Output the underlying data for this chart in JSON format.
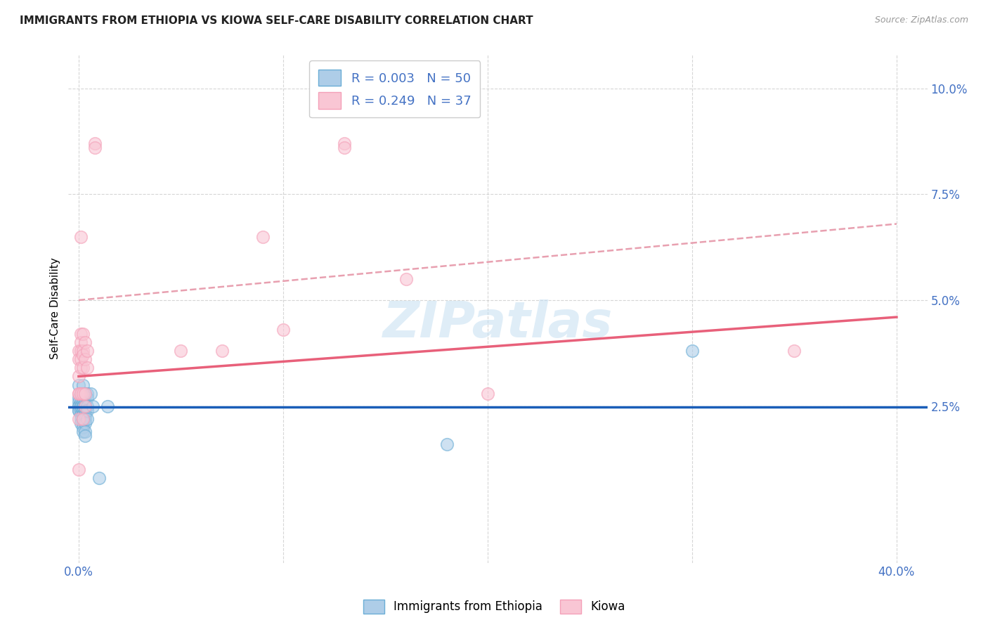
{
  "title": "IMMIGRANTS FROM ETHIOPIA VS KIOWA SELF-CARE DISABILITY CORRELATION CHART",
  "source": "Source: ZipAtlas.com",
  "ylabel": "Self-Care Disability",
  "xlim": [
    -0.005,
    0.415
  ],
  "ylim": [
    -0.012,
    0.108
  ],
  "legend_bottom": [
    "Immigrants from Ethiopia",
    "Kiowa"
  ],
  "blue_color": "#6baed6",
  "pink_color": "#f4a0b8",
  "blue_face": "#aecde8",
  "pink_face": "#f9c6d4",
  "line_blue_color": "#1a5eb8",
  "line_pink_color": "#e8607a",
  "line_dash_color": "#e8a0b0",
  "watermark": "ZIPatlas",
  "tick_color": "#4472c4",
  "blue_R": "0.003",
  "blue_N": "50",
  "pink_R": "0.249",
  "pink_N": "37",
  "blue_scatter": [
    [
      0.0,
      0.03
    ],
    [
      0.0,
      0.027
    ],
    [
      0.0,
      0.026
    ],
    [
      0.0,
      0.025
    ],
    [
      0.0,
      0.025
    ],
    [
      0.0,
      0.024
    ],
    [
      0.0,
      0.024
    ],
    [
      0.001,
      0.028
    ],
    [
      0.001,
      0.026
    ],
    [
      0.001,
      0.025
    ],
    [
      0.001,
      0.025
    ],
    [
      0.001,
      0.024
    ],
    [
      0.001,
      0.023
    ],
    [
      0.001,
      0.022
    ],
    [
      0.001,
      0.021
    ],
    [
      0.002,
      0.03
    ],
    [
      0.002,
      0.027
    ],
    [
      0.002,
      0.026
    ],
    [
      0.002,
      0.025
    ],
    [
      0.002,
      0.025
    ],
    [
      0.002,
      0.024
    ],
    [
      0.002,
      0.024
    ],
    [
      0.002,
      0.023
    ],
    [
      0.002,
      0.023
    ],
    [
      0.002,
      0.022
    ],
    [
      0.002,
      0.022
    ],
    [
      0.002,
      0.021
    ],
    [
      0.002,
      0.02
    ],
    [
      0.002,
      0.019
    ],
    [
      0.003,
      0.028
    ],
    [
      0.003,
      0.026
    ],
    [
      0.003,
      0.025
    ],
    [
      0.003,
      0.025
    ],
    [
      0.003,
      0.024
    ],
    [
      0.003,
      0.024
    ],
    [
      0.003,
      0.023
    ],
    [
      0.003,
      0.022
    ],
    [
      0.003,
      0.021
    ],
    [
      0.003,
      0.019
    ],
    [
      0.003,
      0.018
    ],
    [
      0.004,
      0.028
    ],
    [
      0.004,
      0.027
    ],
    [
      0.004,
      0.025
    ],
    [
      0.004,
      0.024
    ],
    [
      0.004,
      0.022
    ],
    [
      0.006,
      0.028
    ],
    [
      0.007,
      0.025
    ],
    [
      0.014,
      0.025
    ],
    [
      0.3,
      0.038
    ],
    [
      0.18,
      0.016
    ],
    [
      0.01,
      0.008
    ]
  ],
  "pink_scatter": [
    [
      0.0,
      0.038
    ],
    [
      0.0,
      0.036
    ],
    [
      0.0,
      0.032
    ],
    [
      0.0,
      0.028
    ],
    [
      0.0,
      0.028
    ],
    [
      0.0,
      0.022
    ],
    [
      0.0,
      0.01
    ],
    [
      0.001,
      0.065
    ],
    [
      0.001,
      0.042
    ],
    [
      0.001,
      0.04
    ],
    [
      0.001,
      0.038
    ],
    [
      0.001,
      0.036
    ],
    [
      0.001,
      0.034
    ],
    [
      0.001,
      0.028
    ],
    [
      0.002,
      0.042
    ],
    [
      0.002,
      0.038
    ],
    [
      0.002,
      0.037
    ],
    [
      0.002,
      0.034
    ],
    [
      0.002,
      0.028
    ],
    [
      0.002,
      0.022
    ],
    [
      0.003,
      0.04
    ],
    [
      0.003,
      0.036
    ],
    [
      0.003,
      0.028
    ],
    [
      0.003,
      0.025
    ],
    [
      0.004,
      0.038
    ],
    [
      0.004,
      0.034
    ],
    [
      0.008,
      0.087
    ],
    [
      0.008,
      0.086
    ],
    [
      0.05,
      0.038
    ],
    [
      0.07,
      0.038
    ],
    [
      0.09,
      0.065
    ],
    [
      0.1,
      0.043
    ],
    [
      0.13,
      0.087
    ],
    [
      0.13,
      0.086
    ],
    [
      0.16,
      0.055
    ],
    [
      0.2,
      0.028
    ],
    [
      0.35,
      0.038
    ]
  ],
  "blue_line_y0": 0.0248,
  "blue_line_y1": 0.0248,
  "pink_line_x0": 0.0,
  "pink_line_y0": 0.032,
  "pink_line_x1": 0.4,
  "pink_line_y1": 0.046,
  "dash_line_x0": 0.0,
  "dash_line_y0": 0.05,
  "dash_line_x1": 0.4,
  "dash_line_y1": 0.068
}
